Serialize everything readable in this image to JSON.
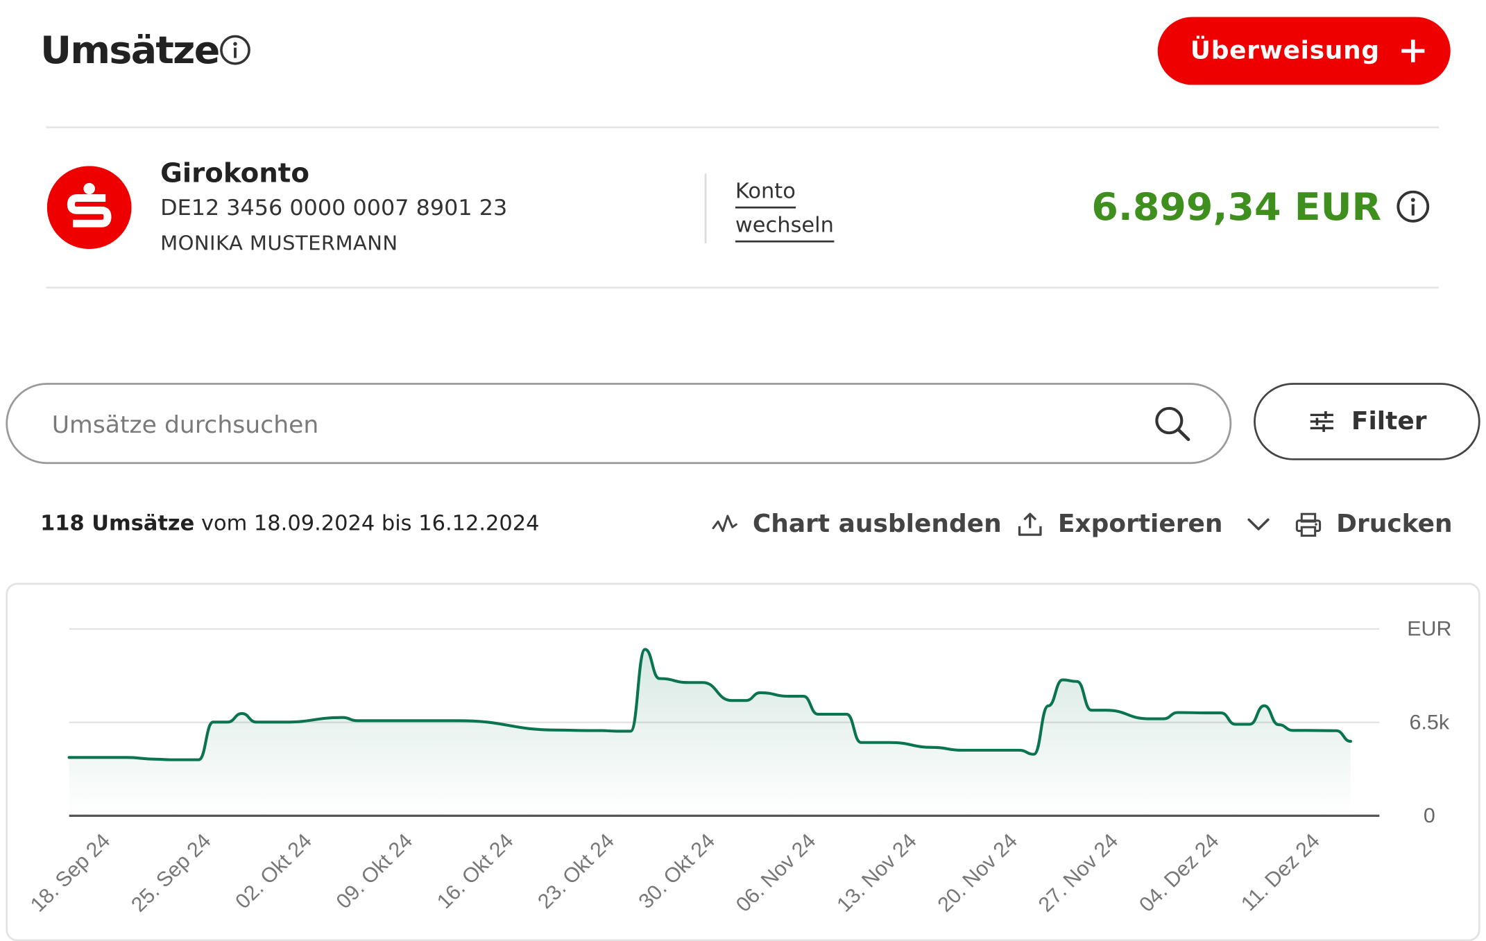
{
  "header": {
    "title": "Umsätze",
    "transfer_button": "Überweisung"
  },
  "icons": {
    "title_info": "info-icon",
    "transfer": "plus-icon",
    "bank_logo": "sparkasse-logo-icon",
    "balance_info": "info-icon",
    "search": "search-icon",
    "filter": "sliders-icon",
    "chart_toggle": "chart-line-icon",
    "export": "upload-icon",
    "export_menu": "chevron-down-icon",
    "print": "printer-icon"
  },
  "colors": {
    "brand_red": "#ee0000",
    "balance_green": "#3f8f1e",
    "chart_line": "#0a7350"
  },
  "account": {
    "name": "Girokonto",
    "iban": "DE12 3456 0000 0007 8901 23",
    "holder": "MONIKA MUSTERMANN",
    "switch_label_1": "Konto",
    "switch_label_2": "wechseln",
    "balance": "6.899,34 EUR"
  },
  "search": {
    "placeholder": "Umsätze durchsuchen"
  },
  "filter": {
    "label": "Filter"
  },
  "summary": {
    "count_text": "118 Umsätze",
    "range_text": " vom 18.09.2024 bis 16.12.2024"
  },
  "toolbar": {
    "chart_toggle": "Chart ausblenden",
    "export": "Exportieren",
    "print": "Drucken"
  },
  "chart_data": {
    "type": "line",
    "unit_label": "EUR",
    "ylim": [
      0,
      13000
    ],
    "y_ticks": [
      {
        "value": 0,
        "label": "0"
      },
      {
        "value": 6500,
        "label": "6.5k"
      }
    ],
    "x_ticks": [
      "18. Sep 24",
      "25. Sep 24",
      "02. Okt 24",
      "09. Okt 24",
      "16. Okt 24",
      "23. Okt 24",
      "30. Okt 24",
      "06. Nov 24",
      "13. Nov 24",
      "20. Nov 24",
      "27. Nov 24",
      "04. Dez 24",
      "11. Dez 24"
    ],
    "grid": true,
    "x": [
      "2024-09-18",
      "2024-09-22",
      "2024-09-24",
      "2024-09-25",
      "2024-09-27",
      "2024-09-28",
      "2024-09-29",
      "2024-09-30",
      "2024-10-01",
      "2024-10-02",
      "2024-10-03",
      "2024-10-07",
      "2024-10-08",
      "2024-10-09",
      "2024-10-14",
      "2024-10-15",
      "2024-10-22",
      "2024-10-24",
      "2024-10-25",
      "2024-10-26",
      "2024-10-27",
      "2024-10-28",
      "2024-10-29",
      "2024-10-31",
      "2024-11-01",
      "2024-11-03",
      "2024-11-04",
      "2024-11-05",
      "2024-11-07",
      "2024-11-08",
      "2024-11-09",
      "2024-11-11",
      "2024-11-12",
      "2024-11-14",
      "2024-11-17",
      "2024-11-19",
      "2024-11-23",
      "2024-11-24",
      "2024-11-25",
      "2024-11-26",
      "2024-11-27",
      "2024-11-28",
      "2024-11-29",
      "2024-12-02",
      "2024-12-03",
      "2024-12-04",
      "2024-12-06",
      "2024-12-07",
      "2024-12-08",
      "2024-12-09",
      "2024-12-10",
      "2024-12-11",
      "2024-12-12",
      "2024-12-13",
      "2024-12-15",
      "2024-12-16"
    ],
    "values": [
      4060,
      4060,
      3940,
      3900,
      3900,
      6520,
      6520,
      7120,
      6520,
      6520,
      6520,
      6840,
      6620,
      6620,
      6620,
      6620,
      5970,
      5930,
      5930,
      5890,
      5890,
      11590,
      9550,
      9280,
      9280,
      8020,
      8020,
      8570,
      8320,
      8320,
      7070,
      7070,
      5100,
      5100,
      4760,
      4560,
      4560,
      4280,
      7650,
      9460,
      9350,
      7350,
      7350,
      6750,
      6750,
      7190,
      7160,
      7160,
      6370,
      6370,
      7660,
      6340,
      5940,
      5940,
      5920,
      5180
    ]
  }
}
